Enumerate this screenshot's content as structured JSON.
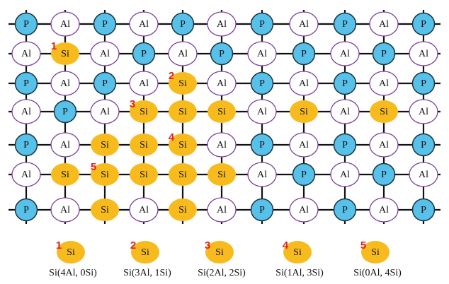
{
  "grid": {
    "rows": [
      [
        "P",
        "Al",
        "P",
        "Al",
        "P",
        "Al",
        "P",
        "Al",
        "P",
        "Al",
        "P"
      ],
      [
        "Al",
        {
          "atom": "Si",
          "number": "1"
        },
        "Al",
        "P",
        "Al",
        "P",
        "Al",
        "P",
        "Al",
        "P",
        "Al"
      ],
      [
        "P",
        "Al",
        "P",
        "Al",
        {
          "atom": "Si",
          "number": "2"
        },
        "Al",
        "P",
        "Al",
        "P",
        "Al",
        "P"
      ],
      [
        "Al",
        "P",
        "Al",
        {
          "atom": "Si",
          "number": "3"
        },
        "Si",
        "Si",
        "Al",
        "Si",
        "Al",
        "Si",
        "Al"
      ],
      [
        "P",
        "Al",
        "Si",
        "Si",
        {
          "atom": "Si",
          "number": "4"
        },
        "Al",
        "P",
        "Al",
        "P",
        "Al",
        "P"
      ],
      [
        "Al",
        "Si",
        {
          "atom": "Si",
          "number": "5"
        },
        "Si",
        "Si",
        "Si",
        "Al",
        "P",
        "Al",
        "P",
        "Al"
      ],
      [
        "P",
        "Al",
        "Si",
        "Al",
        "Si",
        "Al",
        "P",
        "Al",
        "P",
        "Al",
        "P"
      ]
    ]
  },
  "legend": [
    {
      "number": "1",
      "atom": "Si",
      "caption": "Si(4Al, 0Si)"
    },
    {
      "number": "2",
      "atom": "Si",
      "caption": "Si(3Al, 1Si)"
    },
    {
      "number": "3",
      "atom": "Si",
      "caption": "Si(2Al, 2Si)"
    },
    {
      "number": "4",
      "atom": "Si",
      "caption": "Si(1Al, 3Si)"
    },
    {
      "number": "5",
      "atom": "Si",
      "caption": "Si(0Al, 4Si)"
    }
  ]
}
